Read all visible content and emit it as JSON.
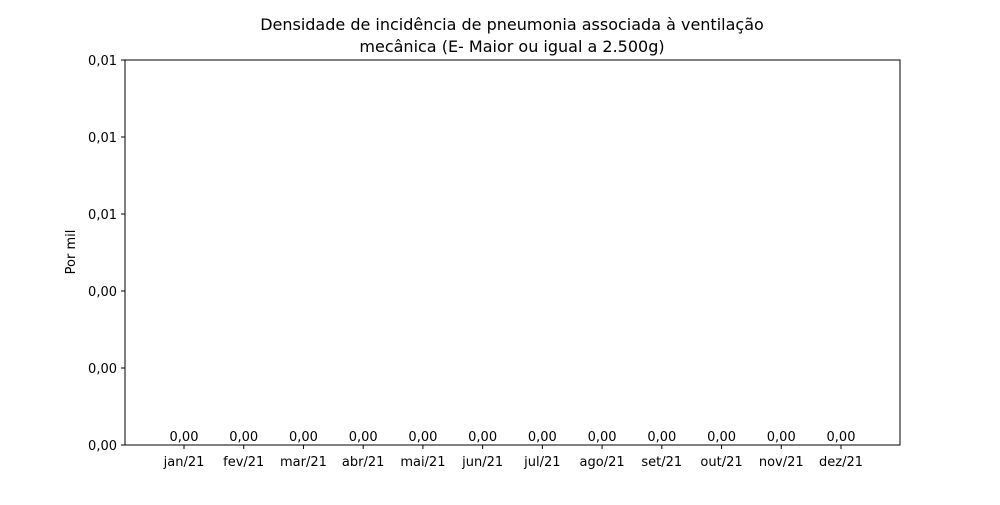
{
  "chart_data": {
    "type": "bar",
    "title_lines": [
      "Densidade de incidência de pneumonia associada à ventilação",
      "mecânica (E- Maior ou igual a 2.500g)"
    ],
    "xlabel": "",
    "ylabel": "Por mil",
    "categories": [
      "jan/21",
      "fev/21",
      "mar/21",
      "abr/21",
      "mai/21",
      "jun/21",
      "jul/21",
      "ago/21",
      "set/21",
      "out/21",
      "nov/21",
      "dez/21"
    ],
    "values": [
      0,
      0,
      0,
      0,
      0,
      0,
      0,
      0,
      0,
      0,
      0,
      0
    ],
    "value_labels": [
      "0,00",
      "0,00",
      "0,00",
      "0,00",
      "0,00",
      "0,00",
      "0,00",
      "0,00",
      "0,00",
      "0,00",
      "0,00",
      "0,00"
    ],
    "ylim": [
      0,
      0.01
    ],
    "y_ticks": [
      {
        "value": 0,
        "label": "0,00"
      },
      {
        "value": 0.002,
        "label": "0,00"
      },
      {
        "value": 0.004,
        "label": "0,00"
      },
      {
        "value": 0.006,
        "label": "0,01"
      },
      {
        "value": 0.008,
        "label": "0,01"
      },
      {
        "value": 0.01,
        "label": "0,01"
      }
    ],
    "bar_color": "#1f77b4",
    "grid": false,
    "legend": "none"
  }
}
